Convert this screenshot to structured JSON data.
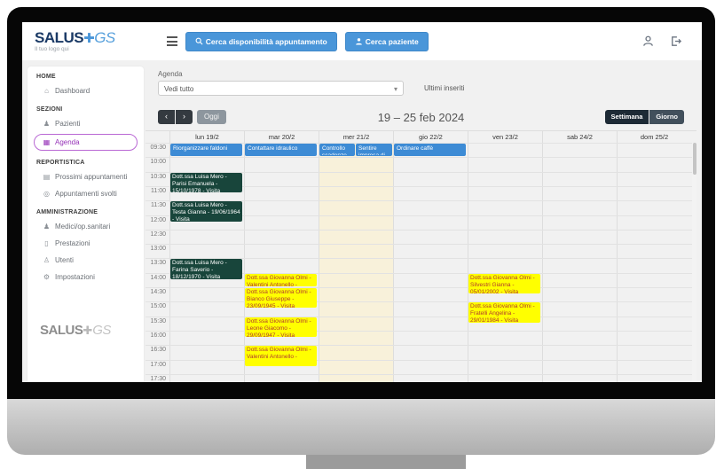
{
  "topbar": {
    "logo": {
      "name_bold": "SALUS",
      "plus": "✚",
      "name_light": "GS",
      "tagline": "Il tuo logo qui"
    },
    "search_availability_label": "Cerca disponibilità appuntamento",
    "search_patient_label": "Cerca paziente"
  },
  "sidebar": {
    "sections": [
      {
        "header": "HOME",
        "items": [
          {
            "icon": "home-icon",
            "glyph": "⌂",
            "label": "Dashboard",
            "active": false
          }
        ]
      },
      {
        "header": "SEZIONI",
        "items": [
          {
            "icon": "patients-icon",
            "glyph": "♟",
            "label": "Pazienti",
            "active": false
          },
          {
            "icon": "calendar-icon",
            "glyph": "▦",
            "label": "Agenda",
            "active": true
          }
        ]
      },
      {
        "header": "REPORTISTICA",
        "items": [
          {
            "icon": "upcoming-appointments-icon",
            "glyph": "▤",
            "label": "Prossimi appuntamenti",
            "active": false
          },
          {
            "icon": "done-appointments-icon",
            "glyph": "◎",
            "label": "Appuntamenti svolti",
            "active": false
          }
        ]
      },
      {
        "header": "AMMINISTRAZIONE",
        "items": [
          {
            "icon": "doctors-icon",
            "glyph": "♟",
            "label": "Medici/op.sanitari",
            "active": false
          },
          {
            "icon": "services-icon",
            "glyph": "▯",
            "label": "Prestazioni",
            "active": false
          },
          {
            "icon": "users-icon",
            "glyph": "♙",
            "label": "Utenti",
            "active": false
          },
          {
            "icon": "settings-icon",
            "glyph": "⚙",
            "label": "Impostazioni",
            "active": false
          }
        ]
      }
    ],
    "footer_logo": {
      "name_bold": "SALUS",
      "plus": "✚",
      "name_light": "GS"
    }
  },
  "main": {
    "agenda_label": "Agenda",
    "filter_value": "Vedi tutto",
    "latest_label": "Ultimi inseriti",
    "toolbar": {
      "prev": "‹",
      "next": "›",
      "today": "Oggi",
      "title": "19 – 25 feb 2024",
      "week": "Settimana",
      "day": "Giorno"
    }
  },
  "calendar": {
    "days": [
      "lun 19/2",
      "mar 20/2",
      "mer 21/2",
      "gio 22/2",
      "ven 23/2",
      "sab 24/2",
      "dom 25/2"
    ],
    "today_index": 2,
    "slots": [
      "09:30",
      "10:00",
      "10:30",
      "11:00",
      "11:30",
      "12:00",
      "12:30",
      "13:00",
      "13:30",
      "14:00",
      "14:30",
      "15:00",
      "15:30",
      "16:00",
      "16:30",
      "17:00",
      "17:30"
    ],
    "colors": {
      "task_bg": "#3d8bd5",
      "task_text": "#ffffff",
      "visit_mero_bg": "#18453b",
      "visit_mero_text": "#ffffff",
      "visit_olmi_bg": "#ffff00",
      "visit_olmi_text": "#b03a2e",
      "today_bg": "#f8f1da"
    },
    "events": [
      {
        "day": 0,
        "start": "09:30",
        "end": "10:00",
        "type": "task",
        "text": "Riorganizzare faldoni"
      },
      {
        "day": 0,
        "start": "10:30",
        "end": "11:15",
        "type": "mero",
        "text": "Dott.ssa Luisa Mero - Parisi Emanuela - 15/10/1978 - Visita"
      },
      {
        "day": 0,
        "start": "11:30",
        "end": "12:15",
        "type": "mero",
        "text": "Dott.ssa Luisa Mero - Testa Gianna - 19/06/1964 - Visita"
      },
      {
        "day": 0,
        "start": "13:30",
        "end": "14:15",
        "type": "mero",
        "text": "Dott.ssa Luisa Mero - Farina Saverio - 18/12/1970 - Visita"
      },
      {
        "day": 1,
        "start": "09:30",
        "end": "10:00",
        "type": "task",
        "text": "Contattare idraulico"
      },
      {
        "day": 1,
        "start": "14:00",
        "end": "14:30",
        "type": "olmi",
        "text": "Dott.ssa Giovanna Olmi - Valentini Antonello -"
      },
      {
        "day": 1,
        "start": "14:30",
        "end": "15:15",
        "type": "olmi",
        "text": "Dott.ssa Giovanna Olmi - Bianco Giuseppe - 23/09/1945 - Visita"
      },
      {
        "day": 1,
        "start": "15:30",
        "end": "16:15",
        "type": "olmi",
        "text": "Dott.ssa Giovanna Olmi - Leone Giacomo - 29/09/1947 - Visita"
      },
      {
        "day": 1,
        "start": "16:30",
        "end": "17:15",
        "type": "olmi",
        "text": "Dott.ssa Giovanna Olmi - Valentini Antonello -"
      },
      {
        "day": 2,
        "start": "09:30",
        "end": "10:00",
        "type": "task",
        "half": "left",
        "text": "Controllo scadenze"
      },
      {
        "day": 2,
        "start": "09:30",
        "end": "10:00",
        "type": "task",
        "half": "right",
        "text": "Sentire impresa di"
      },
      {
        "day": 3,
        "start": "09:30",
        "end": "10:00",
        "type": "task",
        "text": "Ordinare caffè"
      },
      {
        "day": 4,
        "start": "14:00",
        "end": "14:45",
        "type": "olmi",
        "text": "Dott.ssa Giovanna Olmi - Silvestri Gianna - 05/01/2002 - Visita"
      },
      {
        "day": 4,
        "start": "15:00",
        "end": "15:45",
        "type": "olmi",
        "text": "Dott.ssa Giovanna Olmi - Fratelli Angelina - 29/01/1984 - Visita"
      }
    ]
  }
}
